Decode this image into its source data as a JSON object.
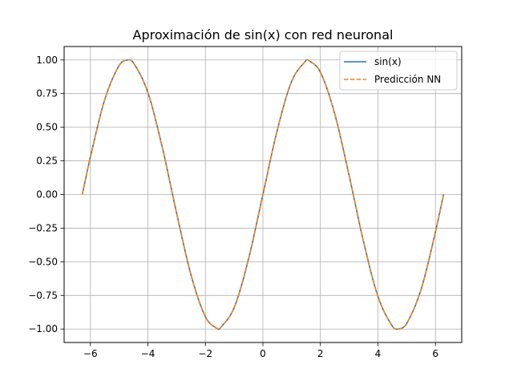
{
  "chart_data": {
    "type": "line",
    "title": "Aproximación de sin(x) con red neuronal",
    "xlabel": "",
    "ylabel": "",
    "xlim": [
      -6.914,
      6.914
    ],
    "ylim": [
      -1.1,
      1.1
    ],
    "x_ticks": [
      -6,
      -4,
      -2,
      0,
      2,
      4,
      6
    ],
    "x_tick_labels": [
      "−6",
      "−4",
      "−2",
      "0",
      "2",
      "4",
      "6"
    ],
    "y_ticks": [
      -1.0,
      -0.75,
      -0.5,
      -0.25,
      0.0,
      0.25,
      0.5,
      0.75,
      1.0
    ],
    "y_tick_labels": [
      "−1.00",
      "−0.75",
      "−0.50",
      "−0.25",
      "0.00",
      "0.25",
      "0.50",
      "0.75",
      "1.00"
    ],
    "grid": true,
    "legend_position": "top-right",
    "series": [
      {
        "name": "sin(x)",
        "style": "solid",
        "color": "#1f77b4",
        "x": [
          -6.283,
          -6.0,
          -5.5,
          -5.0,
          -4.712,
          -4.5,
          -4.0,
          -3.5,
          -3.142,
          -3.0,
          -2.5,
          -2.0,
          -1.571,
          -1.5,
          -1.0,
          -0.5,
          0.0,
          0.5,
          1.0,
          1.5,
          1.571,
          2.0,
          2.5,
          3.0,
          3.142,
          3.5,
          4.0,
          4.5,
          4.712,
          5.0,
          5.5,
          6.0,
          6.283
        ],
        "y": [
          0.0,
          0.279,
          0.706,
          0.959,
          1.0,
          0.978,
          0.757,
          0.351,
          0.0,
          -0.141,
          -0.598,
          -0.909,
          -1.0,
          -0.997,
          -0.841,
          -0.479,
          0.0,
          0.479,
          0.841,
          0.997,
          1.0,
          0.909,
          0.598,
          0.141,
          0.0,
          -0.351,
          -0.757,
          -0.978,
          -1.0,
          -0.959,
          -0.706,
          -0.279,
          0.0
        ]
      },
      {
        "name": "Predicción NN",
        "style": "dashed",
        "color": "#ff7f0e",
        "x": [
          -6.283,
          -6.0,
          -5.5,
          -5.0,
          -4.712,
          -4.5,
          -4.0,
          -3.5,
          -3.142,
          -3.0,
          -2.5,
          -2.0,
          -1.571,
          -1.5,
          -1.0,
          -0.5,
          0.0,
          0.5,
          1.0,
          1.5,
          1.571,
          2.0,
          2.5,
          3.0,
          3.142,
          3.5,
          4.0,
          4.5,
          4.712,
          5.0,
          5.5,
          6.0,
          6.283
        ],
        "y": [
          0.0,
          0.279,
          0.706,
          0.959,
          1.0,
          0.978,
          0.757,
          0.351,
          0.0,
          -0.141,
          -0.598,
          -0.909,
          -1.0,
          -0.997,
          -0.841,
          -0.479,
          0.0,
          0.479,
          0.841,
          0.997,
          1.0,
          0.909,
          0.598,
          0.141,
          0.0,
          -0.351,
          -0.757,
          -0.978,
          -1.0,
          -0.959,
          -0.706,
          -0.279,
          0.0
        ]
      }
    ]
  }
}
